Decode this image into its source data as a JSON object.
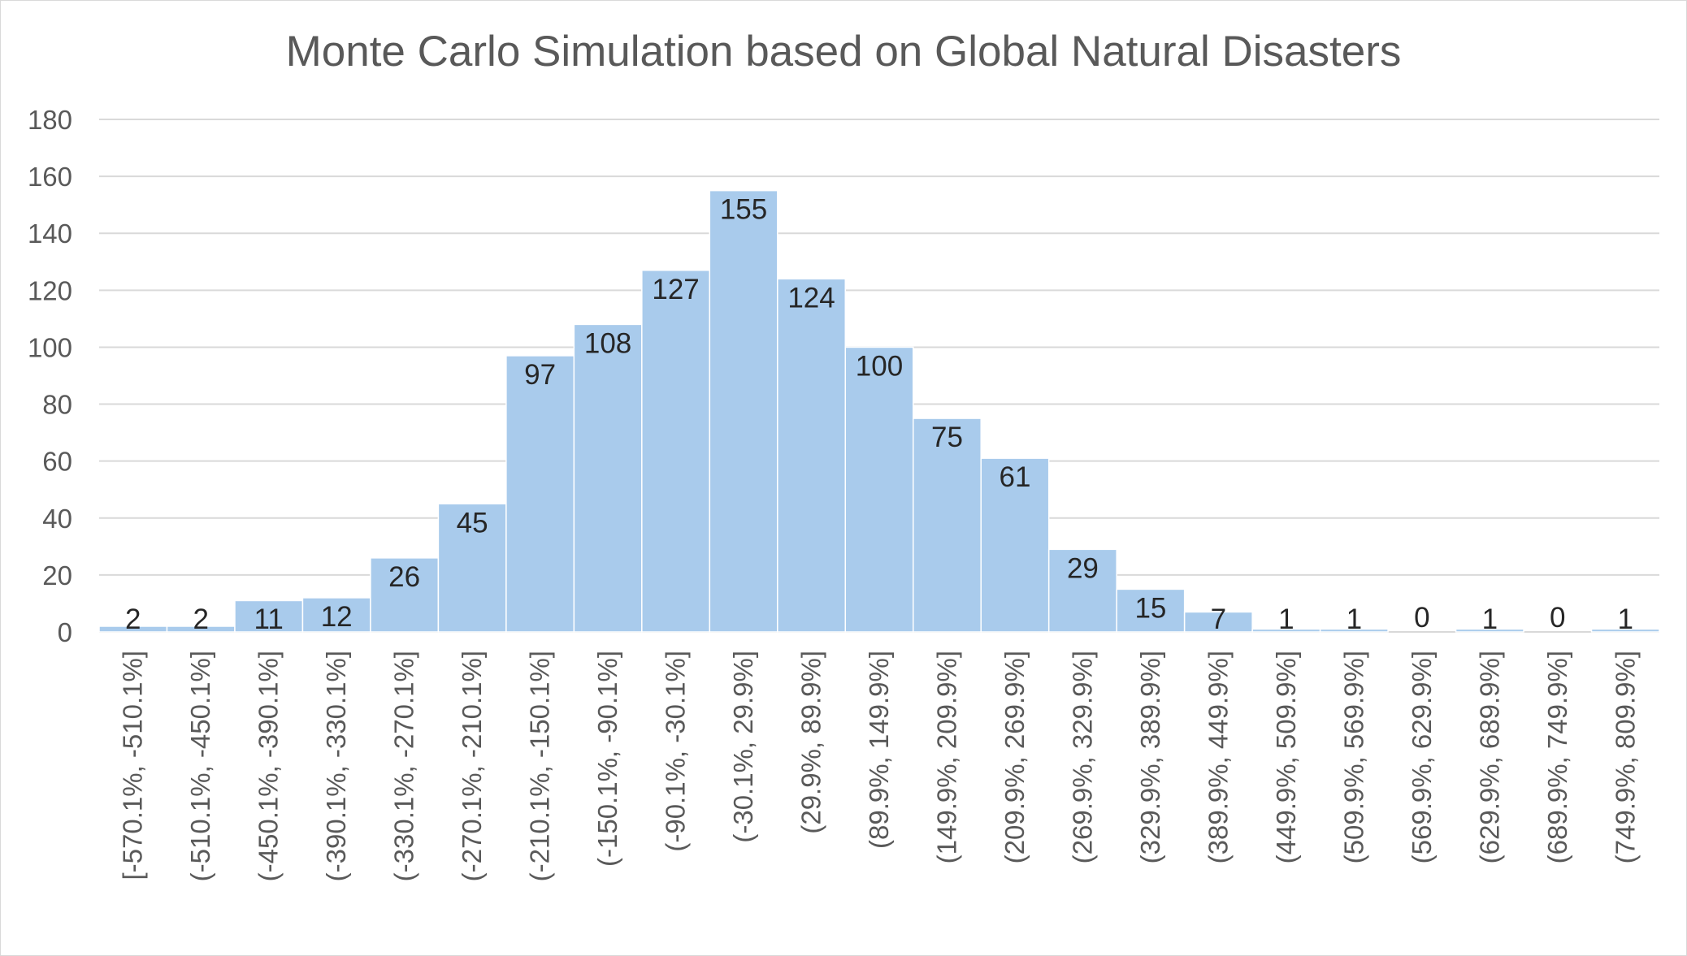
{
  "chart_data": {
    "type": "bar",
    "title": "Monte Carlo Simulation based on Global Natural Disasters",
    "xlabel": "",
    "ylabel": "",
    "ylim": [
      0,
      180
    ],
    "yticks": [
      0,
      20,
      40,
      60,
      80,
      100,
      120,
      140,
      160,
      180
    ],
    "grid": true,
    "legend": "none",
    "bar_color": "#a9cbec",
    "categories": [
      "[-570.1%, -510.1%]",
      "(-510.1%, -450.1%]",
      "(-450.1%, -390.1%]",
      "(-390.1%, -330.1%]",
      "(-330.1%, -270.1%]",
      "(-270.1%, -210.1%]",
      "(-210.1%, -150.1%]",
      "(-150.1%, -90.1%]",
      "(-90.1%, -30.1%]",
      "(-30.1%, 29.9%]",
      "(29.9%, 89.9%]",
      "(89.9%, 149.9%]",
      "(149.9%, 209.9%]",
      "(209.9%, 269.9%]",
      "(269.9%, 329.9%]",
      "(329.9%, 389.9%]",
      "(389.9%, 449.9%]",
      "(449.9%, 509.9%]",
      "(509.9%, 569.9%]",
      "(569.9%, 629.9%]",
      "(629.9%, 689.9%]",
      "(689.9%, 749.9%]",
      "(749.9%, 809.9%]"
    ],
    "values": [
      2,
      2,
      11,
      12,
      26,
      45,
      97,
      108,
      127,
      155,
      124,
      100,
      75,
      61,
      29,
      15,
      7,
      1,
      1,
      0,
      1,
      0,
      1
    ]
  }
}
